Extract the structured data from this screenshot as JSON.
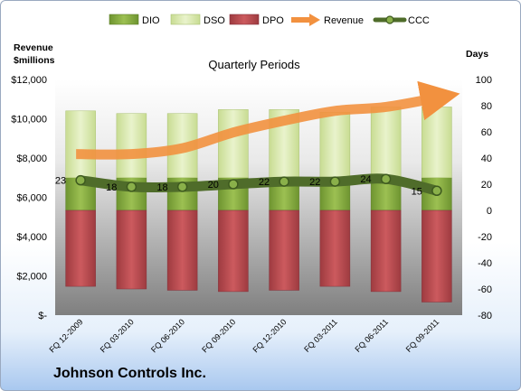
{
  "chart_data": {
    "type": "bar",
    "title": "Quarterly Periods",
    "company": "Johnson Controls Inc.",
    "left_axis_title": [
      "Revenue",
      "$millions"
    ],
    "right_axis_title": "Days",
    "left_ylim": [
      0,
      12000
    ],
    "left_ticks": [
      "$-",
      "$2,000",
      "$4,000",
      "$6,000",
      "$8,000",
      "$10,000",
      "$12,000"
    ],
    "right_ylim": [
      -80,
      100
    ],
    "right_ticks": [
      "-80",
      "-60",
      "-40",
      "-20",
      "0",
      "20",
      "40",
      "60",
      "80",
      "100"
    ],
    "categories": [
      "FQ 12-2009",
      "FQ 03-2010",
      "FQ 06-2010",
      "FQ 09-2010",
      "FQ 12-2010",
      "FQ 03-2011",
      "FQ 06-2011",
      "FQ 09-2011"
    ],
    "series": [
      {
        "name": "DIO",
        "axis": "days",
        "color": "#7fa33a",
        "values": [
          25,
          25,
          25,
          25,
          25,
          25,
          25,
          25
        ]
      },
      {
        "name": "DSO",
        "axis": "days",
        "color": "#d5e6a7",
        "values": [
          51,
          49,
          49,
          52,
          52,
          50,
          54,
          54
        ]
      },
      {
        "name": "DPO",
        "axis": "days",
        "color": "#b8474c",
        "values": [
          -58,
          -60,
          -61,
          -62,
          -61,
          -58,
          -62,
          -70
        ]
      },
      {
        "name": "Revenue",
        "axis": "money",
        "color": "#f2913f",
        "values": [
          8200,
          8200,
          8500,
          9300,
          9900,
          10400,
          10600,
          11100
        ]
      },
      {
        "name": "CCC",
        "axis": "days",
        "color": "#4f6c2a",
        "values": [
          23,
          18,
          18,
          20,
          22,
          22,
          24,
          15
        ]
      }
    ],
    "ccc_labels": [
      "23",
      "18",
      "18",
      "20",
      "22",
      "22",
      "24",
      "15"
    ],
    "grid": false,
    "legend": "top"
  }
}
